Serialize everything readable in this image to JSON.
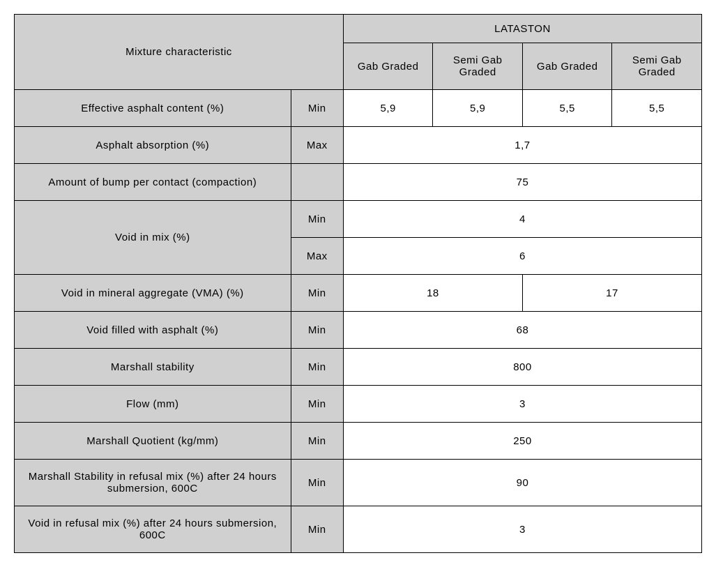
{
  "table": {
    "header": {
      "mixture_char": "Mixture characteristic",
      "lataston": "LATASTON",
      "cols": {
        "c1": "Gab Graded",
        "c2": "Semi Gab Graded",
        "c3": "Gab Graded",
        "c4": "Semi Gab Graded"
      }
    },
    "labels": {
      "min": "Min",
      "max": "Max"
    },
    "rows": {
      "effective_asphalt": {
        "label": "Effective   asphalt content (%)",
        "v1": "5,9",
        "v2": "5,9",
        "v3": "5,5",
        "v4": "5,5"
      },
      "asphalt_absorption": {
        "label": "Asphalt absorption (%)",
        "value": "1,7"
      },
      "bump_per_contact": {
        "label": "Amount of bump per contact   (compaction)",
        "value": "75"
      },
      "void_in_mix": {
        "label": "Void in mix (%)",
        "min_value": "4",
        "max_value": "6"
      },
      "vma": {
        "label": "Void in mineral aggregate (VMA) (%)",
        "v12": "18",
        "v34": "17"
      },
      "vfa": {
        "label": "Void filled with asphalt (%)",
        "value": "68"
      },
      "marshall_stability": {
        "label": "Marshall stability",
        "value": "800"
      },
      "flow": {
        "label": "Flow (mm)",
        "value": "3"
      },
      "marshall_quotient": {
        "label": "Marshall   Quotient (kg/mm)",
        "value": "250"
      },
      "marshall_refusal": {
        "label": "Marshall   Stability in refusal mix (%)   after 24 hours submersion, 600C",
        "value": "90"
      },
      "void_refusal": {
        "label": "Void in refusal mix (%)   after 24 hours submersion, 600C",
        "value": "3"
      }
    }
  },
  "style": {
    "header_bg": "#d0d0d0",
    "data_bg": "#ffffff",
    "border_color": "#000000",
    "font_size_pt": 11,
    "font_family": "Arial Narrow"
  }
}
